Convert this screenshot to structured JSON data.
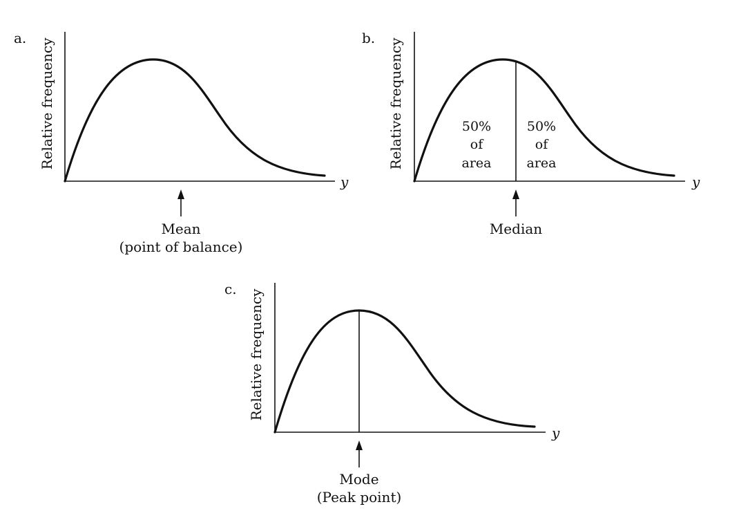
{
  "diagram": {
    "axis_ylabel": "Relative frequency",
    "axis_xlabel": "y",
    "panels": [
      {
        "id": "a",
        "letter": "a.",
        "marker_line": false,
        "annotation_lines": [
          "Mean",
          "(point of balance)"
        ],
        "area_labels": []
      },
      {
        "id": "b",
        "letter": "b.",
        "marker_line": true,
        "annotation_lines": [
          "Median"
        ],
        "area_labels": [
          {
            "side": "left",
            "lines": [
              "50%",
              "of",
              "area"
            ]
          },
          {
            "side": "right",
            "lines": [
              "50%",
              "of",
              "area"
            ]
          }
        ]
      },
      {
        "id": "c",
        "letter": "c.",
        "marker_line": true,
        "annotation_lines": [
          "Mode",
          "(Peak point)"
        ],
        "area_labels": []
      }
    ]
  }
}
